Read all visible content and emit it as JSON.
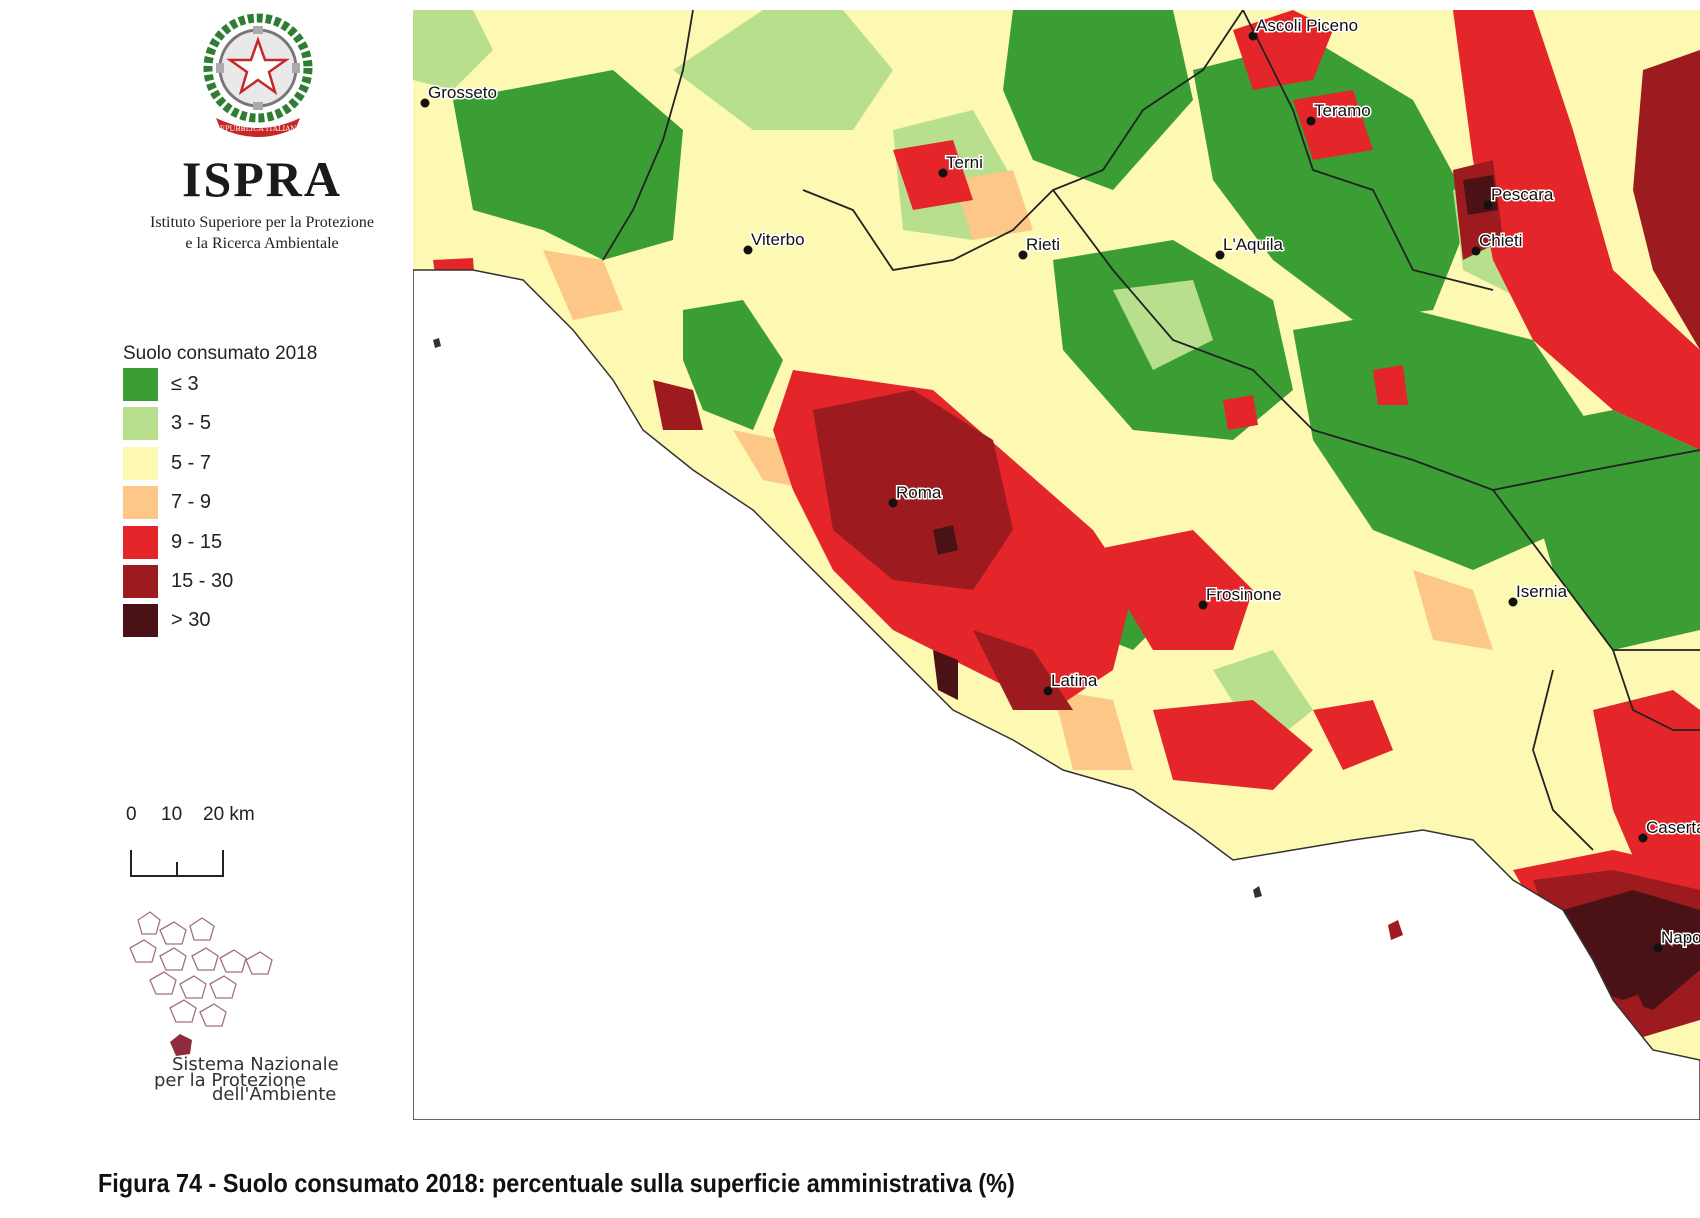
{
  "header": {
    "org_name": "ISPRA",
    "org_full_line1": "Istituto Superiore per la Protezione",
    "org_full_line2": "e la Ricerca Ambientale",
    "emblem_text": "REPUBBLICA ITALIANA"
  },
  "legend": {
    "title_line1": "Suolo consumato 2018",
    "title_line2": "(%)",
    "classes": [
      {
        "label": "≤ 3",
        "color": "#3a9e34"
      },
      {
        "label": "3 - 5",
        "color": "#b7df8e"
      },
      {
        "label": "5 - 7",
        "color": "#fdf9b3"
      },
      {
        "label": "7 - 9",
        "color": "#fdc787"
      },
      {
        "label": "9 - 15",
        "color": "#e4252a"
      },
      {
        "label": "15 - 30",
        "color": "#9d1b1e"
      },
      {
        "label": "> 30",
        "color": "#4a1216"
      }
    ]
  },
  "scale_bar": {
    "label_0": "0",
    "label_10": "10",
    "label_20": "20 km"
  },
  "snpa": {
    "line1": "Sistema Nazionale",
    "line2": "per la Protezione",
    "line3": "dell'Ambiente"
  },
  "map": {
    "sea_color": "#ffffff",
    "cities": [
      {
        "name": "Ascoli Piceno"
      },
      {
        "name": "Grosseto"
      },
      {
        "name": "Teramo"
      },
      {
        "name": "Terni"
      },
      {
        "name": "Pescara"
      },
      {
        "name": "Viterbo"
      },
      {
        "name": "Rieti"
      },
      {
        "name": "L'Aquila"
      },
      {
        "name": "Chieti"
      },
      {
        "name": "Roma"
      },
      {
        "name": "Frosinone"
      },
      {
        "name": "Isernia"
      },
      {
        "name": "Latina"
      },
      {
        "name": "Caserta"
      },
      {
        "name": "Napoli"
      }
    ]
  },
  "caption": "Figura 74 - Suolo consumato 2018: percentuale sulla superficie amministrativa (%)"
}
